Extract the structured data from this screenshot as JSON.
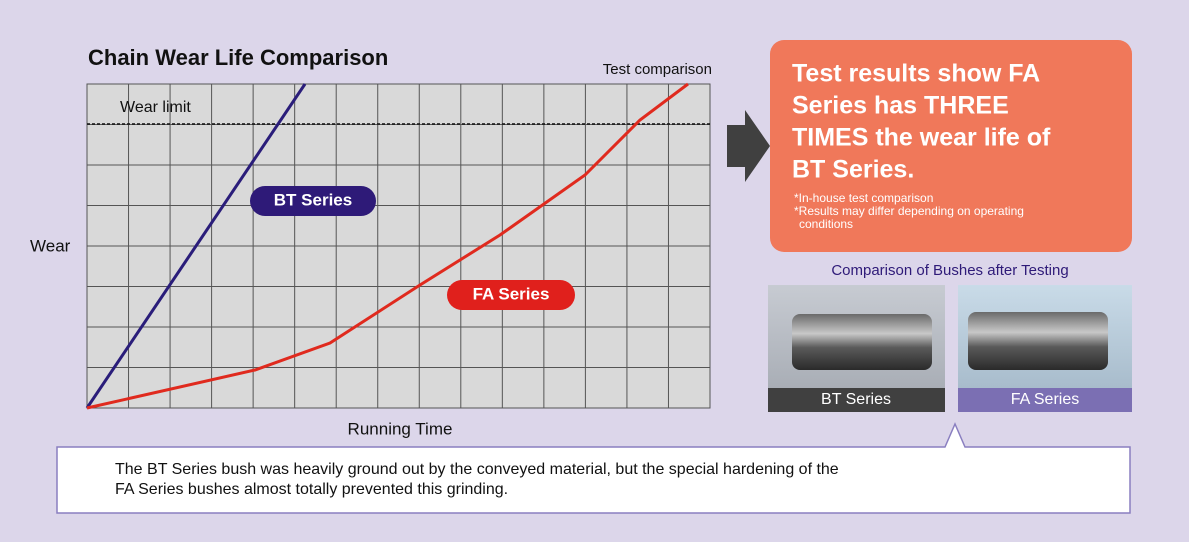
{
  "chart": {
    "title": "Chain Wear Life Comparison",
    "subtitle": "Test comparison",
    "wear_limit": "Wear limit",
    "y_label": "Wear",
    "x_label": "Running Time",
    "bt_label": "BT Series",
    "fa_label": "FA Series"
  },
  "result": {
    "lines": [
      "Test results show FA",
      "Series has THREE",
      "TIMES the wear life of",
      "BT Series."
    ],
    "notes": [
      "*In-house test comparison",
      "*Results may differ depending on operating",
      "conditions"
    ]
  },
  "photos": {
    "title": "Comparison of Bushes after Testing",
    "captions": [
      "BT Series",
      "FA Series"
    ]
  },
  "callout": {
    "lines": [
      "The BT Series bush was heavily ground out by the conveyed material, but the special hardening of the",
      "FA Series bushes almost totally prevented this grinding."
    ]
  }
}
